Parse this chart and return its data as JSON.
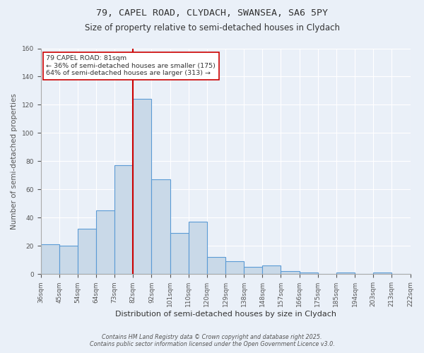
{
  "title1": "79, CAPEL ROAD, CLYDACH, SWANSEA, SA6 5PY",
  "title2": "Size of property relative to semi-detached houses in Clydach",
  "xlabel": "Distribution of semi-detached houses by size in Clydach",
  "ylabel": "Number of semi-detached properties",
  "categories": [
    "36sqm",
    "45sqm",
    "54sqm",
    "64sqm",
    "73sqm",
    "82sqm",
    "92sqm",
    "101sqm",
    "110sqm",
    "120sqm",
    "129sqm",
    "138sqm",
    "148sqm",
    "157sqm",
    "166sqm",
    "175sqm",
    "185sqm",
    "194sqm",
    "203sqm",
    "213sqm",
    "222sqm"
  ],
  "bar_heights": [
    21,
    20,
    32,
    45,
    77,
    124,
    67,
    29,
    37,
    12,
    9,
    5,
    6,
    2,
    1,
    0,
    1,
    0,
    1,
    0
  ],
  "bar_color": "#c9d9e8",
  "bar_edge_color": "#5b9bd5",
  "vline_x": 5,
  "vline_color": "#cc0000",
  "annotation_text": "79 CAPEL ROAD: 81sqm\n← 36% of semi-detached houses are smaller (175)\n64% of semi-detached houses are larger (313) →",
  "annotation_box_edge": "#cc0000",
  "footer1": "Contains HM Land Registry data © Crown copyright and database right 2025.",
  "footer2": "Contains public sector information licensed under the Open Government Licence v3.0.",
  "ylim": [
    0,
    160
  ],
  "yticks": [
    0,
    20,
    40,
    60,
    80,
    100,
    120,
    140,
    160
  ],
  "bg_color": "#eaf0f8",
  "grid_color": "#ffffff"
}
